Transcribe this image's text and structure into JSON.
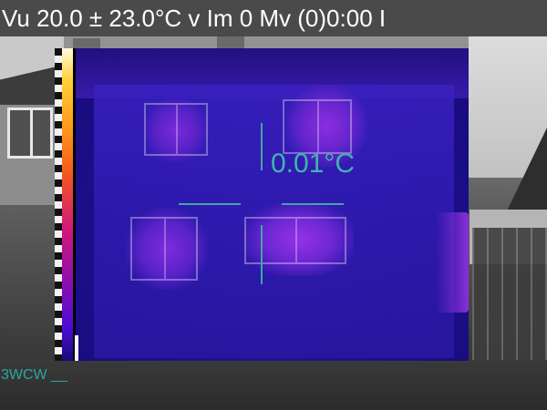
{
  "header": {
    "status_text": "Vu 20.0 ± 23.0°C  v Im 0 Mv (0)0:00 I"
  },
  "measurement": {
    "spot_value": "0.01°C"
  },
  "footer": {
    "label": "3WCW __"
  },
  "colors": {
    "crosshair": "#3fa8a0",
    "thermal_base": "#1d0f8e",
    "header_bg": "#464646"
  },
  "icons": {
    "crosshair": "crosshair-icon"
  }
}
